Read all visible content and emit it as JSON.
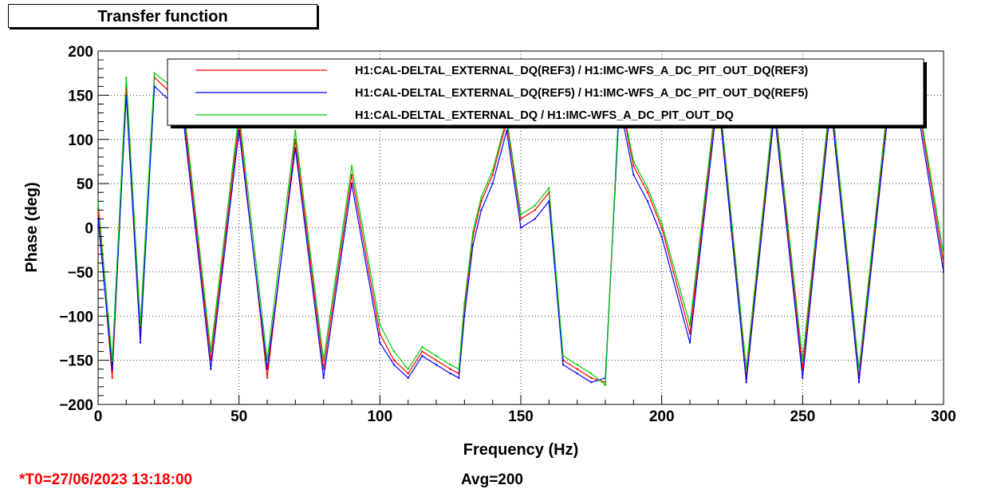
{
  "panel": {
    "title": "Transfer function",
    "t0_label": "*T0=27/06/2023 13:18:00",
    "avg_label": "Avg=200"
  },
  "chart_data": {
    "type": "line",
    "title": "Transfer function",
    "xlabel": "Frequency (Hz)",
    "ylabel": "Phase (deg)",
    "xlim": [
      0,
      300
    ],
    "ylim": [
      -200,
      200
    ],
    "xticks": [
      0,
      50,
      100,
      150,
      200,
      250,
      300
    ],
    "yticks": [
      -200,
      -150,
      -100,
      -50,
      0,
      50,
      100,
      150,
      200
    ],
    "grid": true,
    "legend_position": "top-right",
    "series": [
      {
        "name": "H1:CAL-DELTAL_EXTERNAL_DQ(REF3) / H1:IMC-WFS_A_DC_PIT_OUT_DQ(REF3)",
        "color": "#ff0000",
        "x": [
          0,
          5,
          10,
          15,
          20,
          30,
          40,
          50,
          60,
          70,
          80,
          90,
          100,
          105,
          110,
          115,
          120,
          125,
          128,
          130,
          133,
          136,
          140,
          145,
          150,
          155,
          160,
          165,
          170,
          175,
          180,
          185,
          190,
          195,
          200,
          210,
          220,
          230,
          240,
          250,
          260,
          270,
          280,
          290,
          300
        ],
        "y": [
          20,
          -170,
          160,
          -120,
          170,
          140,
          -150,
          120,
          -170,
          100,
          -160,
          60,
          -120,
          -150,
          -165,
          -140,
          -150,
          -160,
          -165,
          -90,
          -10,
          30,
          60,
          120,
          10,
          20,
          40,
          -150,
          -160,
          -170,
          -175,
          150,
          70,
          40,
          0,
          -120,
          160,
          -170,
          140,
          -160,
          150,
          -170,
          130,
          160,
          -40
        ]
      },
      {
        "name": "H1:CAL-DELTAL_EXTERNAL_DQ(REF5) / H1:IMC-WFS_A_DC_PIT_OUT_DQ(REF5)",
        "color": "#0000ff",
        "x": [
          0,
          5,
          10,
          15,
          20,
          30,
          40,
          50,
          60,
          70,
          80,
          90,
          100,
          105,
          110,
          115,
          120,
          125,
          128,
          130,
          133,
          136,
          140,
          145,
          150,
          155,
          160,
          165,
          170,
          175,
          180,
          185,
          190,
          195,
          200,
          210,
          220,
          230,
          240,
          250,
          260,
          270,
          280,
          290,
          300
        ],
        "y": [
          10,
          -160,
          150,
          -130,
          160,
          130,
          -160,
          110,
          -160,
          90,
          -170,
          50,
          -130,
          -155,
          -170,
          -145,
          -155,
          -165,
          -170,
          -100,
          -20,
          20,
          50,
          110,
          0,
          10,
          30,
          -155,
          -165,
          -175,
          -170,
          140,
          60,
          30,
          -10,
          -130,
          150,
          -175,
          130,
          -170,
          140,
          -175,
          120,
          150,
          -50
        ]
      },
      {
        "name": "H1:CAL-DELTAL_EXTERNAL_DQ / H1:IMC-WFS_A_DC_PIT_OUT_DQ",
        "color": "#00cc00",
        "x": [
          0,
          5,
          10,
          15,
          20,
          30,
          40,
          50,
          60,
          70,
          80,
          90,
          100,
          105,
          110,
          115,
          120,
          125,
          128,
          130,
          133,
          136,
          140,
          145,
          150,
          155,
          160,
          165,
          170,
          175,
          180,
          185,
          190,
          195,
          200,
          210,
          220,
          230,
          240,
          250,
          260,
          270,
          280,
          290,
          300
        ],
        "y": [
          30,
          -150,
          170,
          -110,
          175,
          150,
          -140,
          130,
          -150,
          110,
          -150,
          70,
          -110,
          -140,
          -160,
          -135,
          -145,
          -155,
          -160,
          -85,
          -5,
          35,
          65,
          125,
          15,
          25,
          45,
          -145,
          -155,
          -165,
          -178,
          155,
          75,
          45,
          5,
          -110,
          165,
          -160,
          145,
          -150,
          155,
          -160,
          135,
          165,
          -30
        ]
      }
    ]
  }
}
